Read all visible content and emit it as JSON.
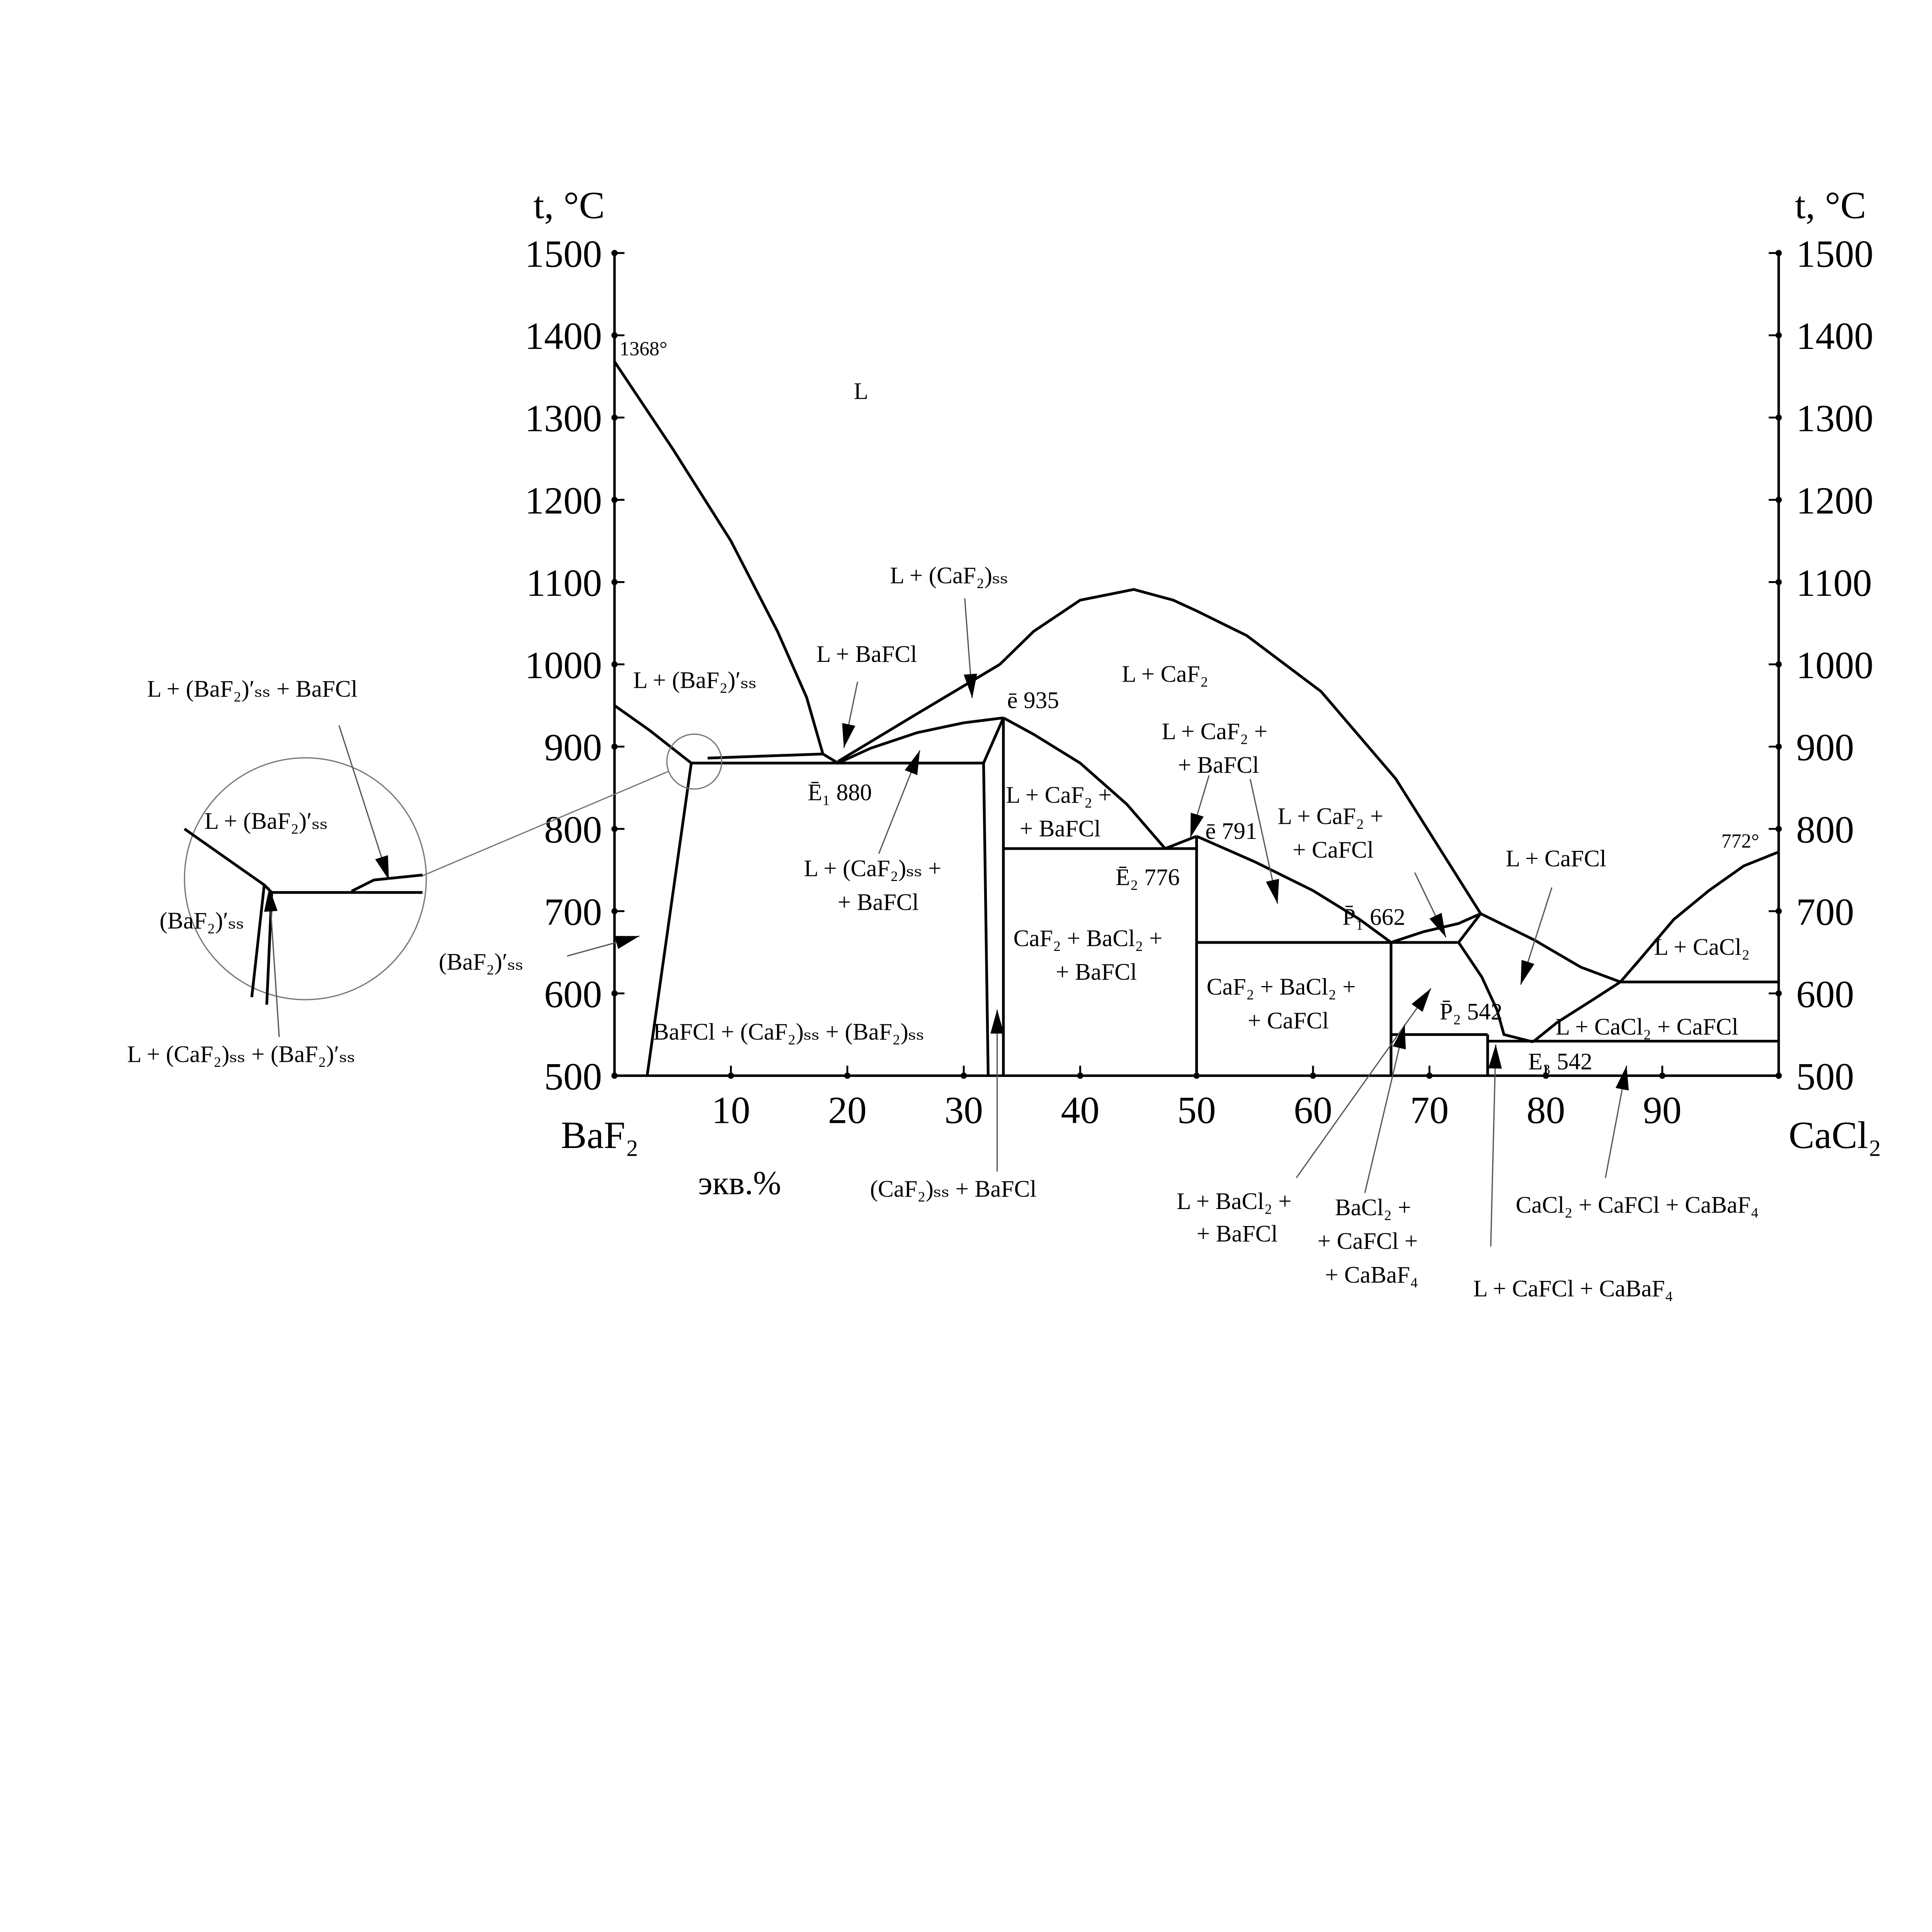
{
  "chart_data": {
    "type": "line",
    "subtype": "phase diagram",
    "xlabel_left_component": "BaF₂",
    "xlabel_right_component": "CaCl₂",
    "xunit": "экв.%",
    "ylabel_left": "t, °C",
    "ylabel_right": "t, °C",
    "xlim": [
      0,
      100
    ],
    "ylim": [
      500,
      1500
    ],
    "xticks": [
      "10",
      "20",
      "30",
      "40",
      "50",
      "60",
      "70",
      "80",
      "90"
    ],
    "yticks": [
      "500",
      "600",
      "700",
      "800",
      "900",
      "1000",
      "1100",
      "1200",
      "1300",
      "1400",
      "1500"
    ],
    "grid": false,
    "line_color": "#000000",
    "curves": [
      [
        [
          0,
          1368
        ],
        [
          5,
          1262
        ],
        [
          10,
          1150
        ],
        [
          14,
          1040
        ],
        [
          16.5,
          960
        ],
        [
          17.9,
          891
        ]
      ],
      [
        [
          17.9,
          891
        ],
        [
          19.2,
          880
        ],
        [
          22,
          898
        ],
        [
          26,
          917
        ],
        [
          30,
          929
        ],
        [
          33.4,
          935
        ]
      ],
      [
        [
          19.2,
          882
        ],
        [
          26,
          940
        ],
        [
          33.1,
          1000
        ]
      ],
      [
        [
          33.1,
          1000
        ],
        [
          36,
          1040
        ],
        [
          40,
          1078
        ],
        [
          44.6,
          1091
        ],
        [
          48,
          1078
        ],
        [
          50,
          1065
        ],
        [
          54.3,
          1035
        ],
        [
          60.7,
          967
        ],
        [
          67.1,
          861
        ],
        [
          74.4,
          697
        ]
      ],
      [
        [
          0,
          950
        ],
        [
          3,
          920
        ],
        [
          6.6,
          880
        ]
      ],
      [
        [
          2.8,
          500
        ],
        [
          6.6,
          880
        ]
      ],
      [
        [
          6.6,
          880
        ],
        [
          31.7,
          880
        ]
      ],
      [
        [
          8,
          886
        ],
        [
          17.9,
          891
        ]
      ],
      [
        [
          31.7,
          880
        ],
        [
          32.1,
          500
        ]
      ],
      [
        [
          31.7,
          880
        ],
        [
          33.4,
          935
        ]
      ],
      [
        [
          33.4,
          935
        ],
        [
          33.4,
          500
        ]
      ],
      [
        [
          33.4,
          935
        ],
        [
          36,
          915
        ],
        [
          40,
          880
        ],
        [
          44,
          830
        ],
        [
          47.3,
          776
        ]
      ],
      [
        [
          33.4,
          776
        ],
        [
          50,
          776
        ]
      ],
      [
        [
          47.3,
          776
        ],
        [
          50,
          791
        ]
      ],
      [
        [
          50,
          791
        ],
        [
          50,
          500
        ]
      ],
      [
        [
          50,
          791
        ],
        [
          55,
          760
        ],
        [
          60,
          725
        ],
        [
          64,
          690
        ],
        [
          66.7,
          662
        ]
      ],
      [
        [
          50,
          662
        ],
        [
          72.5,
          662
        ]
      ],
      [
        [
          66.7,
          662
        ],
        [
          69.5,
          675
        ],
        [
          72.5,
          685
        ],
        [
          74.4,
          697
        ]
      ],
      [
        [
          74.4,
          697
        ],
        [
          72.5,
          662
        ],
        [
          74.5,
          620
        ],
        [
          75.8,
          580
        ],
        [
          76.4,
          550
        ],
        [
          78.9,
          541
        ]
      ],
      [
        [
          66.7,
          550
        ],
        [
          75,
          550
        ]
      ],
      [
        [
          66.7,
          662
        ],
        [
          66.7,
          500
        ]
      ],
      [
        [
          75,
          550
        ],
        [
          75,
          500
        ]
      ],
      [
        [
          75,
          542
        ],
        [
          100,
          542
        ]
      ],
      [
        [
          74.4,
          697
        ],
        [
          79,
          665
        ],
        [
          83,
          632
        ],
        [
          86.4,
          614
        ]
      ],
      [
        [
          86.4,
          614
        ],
        [
          100,
          614
        ]
      ],
      [
        [
          86.4,
          614
        ],
        [
          88,
          640
        ],
        [
          91,
          690
        ],
        [
          94,
          725
        ],
        [
          97,
          755
        ],
        [
          100,
          772
        ]
      ],
      [
        [
          78.9,
          541
        ],
        [
          81,
          565
        ],
        [
          84,
          592
        ],
        [
          86.4,
          614
        ]
      ]
    ]
  },
  "labels": {
    "L": "L",
    "t1368": "1368°",
    "t772": "772°",
    "l_baf2ss": "L + (BaF₂)′ₛₛ",
    "l_bafcl": "L + BaFCl",
    "l_caf2ss": "L + (CaF₂)ₛₛ",
    "e935": "ē 935",
    "l_caf2": "L + CaF₂",
    "e1": "Ē₁ 880",
    "l_caf2ss_bafcl_1": "L + (CaF₂)ₛₛ +",
    "l_caf2ss_bafcl_2": "+ BaFCl",
    "l_caf2_bafcl_a1": "L + CaF₂ +",
    "l_caf2_bafcl_a2": "+ BaFCl",
    "l_caf2_bafcl_b1": "L + CaF₂ +",
    "l_caf2_bafcl_b2": "+ BaFCl",
    "e2": "Ē₂ 776",
    "e791": "ē 791",
    "l_caf2_cafcl_1": "L + CaF₂ +",
    "l_caf2_cafcl_2": "+ CaFCl",
    "l_cafcl": "L + CaFCl",
    "p1": "P̄₁ 662",
    "caf2_bacl2_bafcl_1": "CaF₂ + BaCl₂ +",
    "caf2_bacl2_bafcl_2": "+ BaFCl",
    "caf2_bacl2_cafcl_1": "CaF₂ + BaCl₂ +",
    "caf2_bacl2_cafcl_2": "+ CaFCl",
    "p2": "P̄₂ 542",
    "e3": "E₃ 542",
    "l_cacl2": "L + CaCl₂",
    "l_cacl2_cafcl": "L + CaCl₂ + CaFCl",
    "bafcl_caf2ss_baf2ss": "BaFCl + (CaF₂)ₛₛ + (BaF₂)ₛₛ",
    "baf2ss_prime": "(BaF₂)′ₛₛ",
    "caf2ss_bafcl": "(CaF₂)ₛₛ + BaFCl",
    "l_bacl2_bafcl_1": "L + BaCl₂ +",
    "l_bacl2_bafcl_2": "+ BaFCl",
    "bacl2_cafcl_cabaf4_1": "BaCl₂ +",
    "bacl2_cafcl_cabaf4_2": "+ CaFCl +",
    "bacl2_cafcl_cabaf4_3": "+ CaBaF₄",
    "l_cafcl_cabaf4": "L + CaFCl + CaBaF₄",
    "cacl2_cafcl_cabaf4": "CaCl₂ + CaFCl + CaBaF₄",
    "inset_l_baf2ss_bafcl": "L + (BaF₂)′ₛₛ + BaFCl",
    "inset_l_baf2ss": "L + (BaF₂)′ₛₛ",
    "inset_baf2ss": "(BaF₂)′ₛₛ",
    "inset_l_caf2ss_baf2ss": "L + (CaF₂)ₛₛ + (BaF₂)′ₛₛ"
  }
}
